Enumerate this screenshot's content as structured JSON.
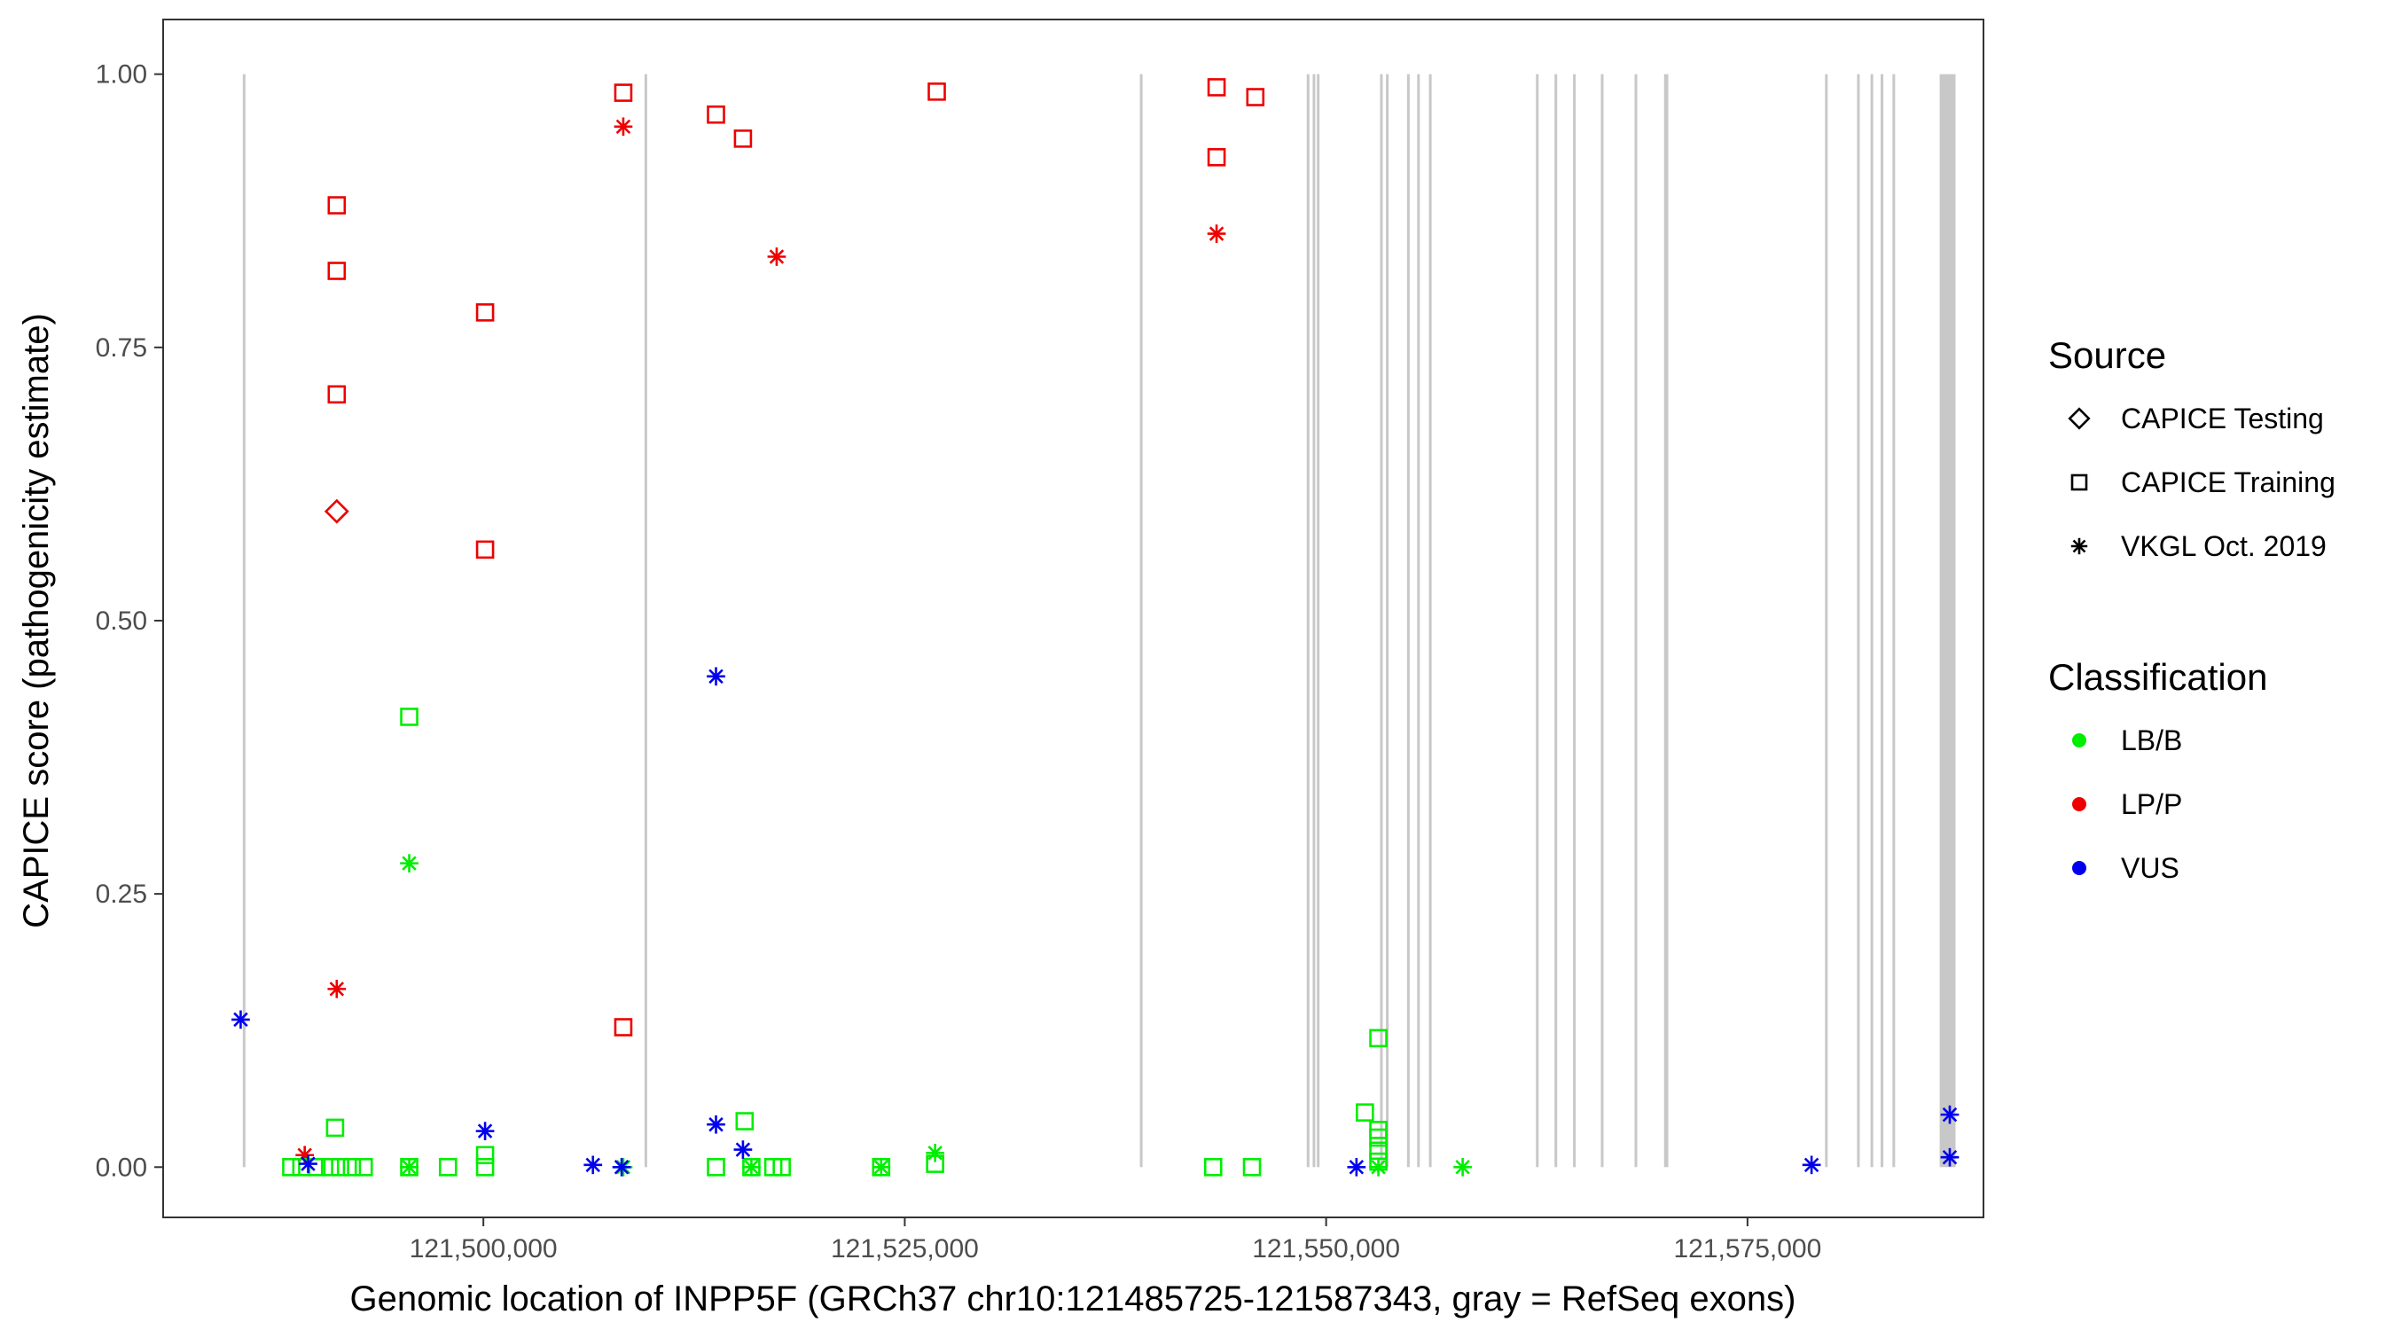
{
  "chart_data": {
    "type": "scatter",
    "title": "",
    "xlabel": "Genomic location of INPP5F (GRCh37 chr10:121485725-121587343, gray = RefSeq exons)",
    "ylabel": "CAPICE score (pathogenicity estimate)",
    "xlim": [
      121481000,
      121589000
    ],
    "ylim": [
      -0.046,
      1.05
    ],
    "x_ticks": [
      121500000,
      121525000,
      121550000,
      121575000
    ],
    "x_tick_labels": [
      "121,500,000",
      "121,525,000",
      "121,550,000",
      "121,575,000"
    ],
    "y_ticks": [
      0,
      0.25,
      0.5,
      0.75,
      1.0
    ],
    "y_tick_labels": [
      "0.00",
      "0.25",
      "0.50",
      "0.75",
      "1.00"
    ],
    "grid": false,
    "exons": [
      [
        121485725,
        121485800
      ],
      [
        121509560,
        121509640
      ],
      [
        121538950,
        121539040
      ],
      [
        121548850,
        121548930
      ],
      [
        121549200,
        121549270
      ],
      [
        121549450,
        121549520
      ],
      [
        121553200,
        121553300
      ],
      [
        121553550,
        121553620
      ],
      [
        121554800,
        121554880
      ],
      [
        121555400,
        121555470
      ],
      [
        121556100,
        121556180
      ],
      [
        121562450,
        121562520
      ],
      [
        121563550,
        121563620
      ],
      [
        121564650,
        121564730
      ],
      [
        121566300,
        121566380
      ],
      [
        121568300,
        121568380
      ],
      [
        121570050,
        121570300
      ],
      [
        121579600,
        121579680
      ],
      [
        121581500,
        121581580
      ],
      [
        121582300,
        121582380
      ],
      [
        121582900,
        121582980
      ],
      [
        121583600,
        121583680
      ],
      [
        121586400,
        121587343
      ]
    ],
    "colors": {
      "LB/B": "#00ee00",
      "LP/P": "#ee0000",
      "VUS": "#0000ee"
    },
    "legend": {
      "position": "right",
      "source_title": "Source",
      "source_items": [
        {
          "label": "CAPICE Testing",
          "shape": "diamond"
        },
        {
          "label": "CAPICE Training",
          "shape": "square"
        },
        {
          "label": "VKGL Oct. 2019",
          "shape": "asterisk"
        }
      ],
      "class_title": "Classification",
      "class_items": [
        {
          "label": "LB/B",
          "color": "#00ee00"
        },
        {
          "label": "LP/P",
          "color": "#ee0000"
        },
        {
          "label": "VUS",
          "color": "#0000ee"
        }
      ]
    },
    "points": [
      {
        "x": 121491300,
        "y": 0.88,
        "source": "CAPICE Training",
        "class": "LP/P"
      },
      {
        "x": 121491300,
        "y": 0.82,
        "source": "CAPICE Training",
        "class": "LP/P"
      },
      {
        "x": 121491300,
        "y": 0.707,
        "source": "CAPICE Training",
        "class": "LP/P"
      },
      {
        "x": 121491300,
        "y": 0.6,
        "source": "CAPICE Testing",
        "class": "LP/P"
      },
      {
        "x": 121491300,
        "y": 0.163,
        "source": "VKGL Oct. 2019",
        "class": "LP/P"
      },
      {
        "x": 121489400,
        "y": 0.011,
        "source": "VKGL Oct. 2019",
        "class": "LP/P"
      },
      {
        "x": 121500100,
        "y": 0.782,
        "source": "CAPICE Training",
        "class": "LP/P"
      },
      {
        "x": 121500100,
        "y": 0.565,
        "source": "CAPICE Training",
        "class": "LP/P"
      },
      {
        "x": 121508300,
        "y": 0.983,
        "source": "CAPICE Training",
        "class": "LP/P"
      },
      {
        "x": 121508300,
        "y": 0.952,
        "source": "VKGL Oct. 2019",
        "class": "LP/P"
      },
      {
        "x": 121508300,
        "y": 0.128,
        "source": "CAPICE Training",
        "class": "LP/P"
      },
      {
        "x": 121513800,
        "y": 0.963,
        "source": "CAPICE Training",
        "class": "LP/P"
      },
      {
        "x": 121515400,
        "y": 0.941,
        "source": "CAPICE Training",
        "class": "LP/P"
      },
      {
        "x": 121517400,
        "y": 0.833,
        "source": "VKGL Oct. 2019",
        "class": "LP/P"
      },
      {
        "x": 121526900,
        "y": 0.984,
        "source": "CAPICE Training",
        "class": "LP/P"
      },
      {
        "x": 121543500,
        "y": 0.988,
        "source": "CAPICE Training",
        "class": "LP/P"
      },
      {
        "x": 121543500,
        "y": 0.924,
        "source": "CAPICE Training",
        "class": "LP/P"
      },
      {
        "x": 121543500,
        "y": 0.854,
        "source": "VKGL Oct. 2019",
        "class": "LP/P"
      },
      {
        "x": 121545800,
        "y": 0.979,
        "source": "CAPICE Training",
        "class": "LP/P"
      },
      {
        "x": 121495600,
        "y": 0.412,
        "source": "CAPICE Training",
        "class": "LB/B"
      },
      {
        "x": 121495600,
        "y": 0.278,
        "source": "VKGL Oct. 2019",
        "class": "LB/B"
      },
      {
        "x": 121491200,
        "y": 0.036,
        "source": "CAPICE Training",
        "class": "LB/B"
      },
      {
        "x": 121488600,
        "y": 0.0,
        "source": "CAPICE Training",
        "class": "LB/B"
      },
      {
        "x": 121489200,
        "y": 0.0,
        "source": "CAPICE Training",
        "class": "LB/B"
      },
      {
        "x": 121490100,
        "y": 0.0,
        "source": "CAPICE Training",
        "class": "LB/B"
      },
      {
        "x": 121490900,
        "y": 0.0,
        "source": "CAPICE Training",
        "class": "LB/B"
      },
      {
        "x": 121491500,
        "y": 0.0,
        "source": "CAPICE Training",
        "class": "LB/B"
      },
      {
        "x": 121492200,
        "y": 0.0,
        "source": "CAPICE Training",
        "class": "LB/B"
      },
      {
        "x": 121492900,
        "y": 0.0,
        "source": "CAPICE Training",
        "class": "LB/B"
      },
      {
        "x": 121495600,
        "y": 0.0,
        "source": "CAPICE Training",
        "class": "LB/B"
      },
      {
        "x": 121495600,
        "y": 0.0,
        "source": "VKGL Oct. 2019",
        "class": "LB/B"
      },
      {
        "x": 121497900,
        "y": 0.0,
        "source": "CAPICE Training",
        "class": "LB/B"
      },
      {
        "x": 121500100,
        "y": 0.011,
        "source": "CAPICE Training",
        "class": "LB/B"
      },
      {
        "x": 121500100,
        "y": 0.0,
        "source": "CAPICE Training",
        "class": "LB/B"
      },
      {
        "x": 121508300,
        "y": 0.0,
        "source": "VKGL Oct. 2019",
        "class": "LB/B"
      },
      {
        "x": 121513800,
        "y": 0.0,
        "source": "CAPICE Training",
        "class": "LB/B"
      },
      {
        "x": 121515500,
        "y": 0.042,
        "source": "CAPICE Training",
        "class": "LB/B"
      },
      {
        "x": 121515900,
        "y": 0.0,
        "source": "CAPICE Training",
        "class": "LB/B"
      },
      {
        "x": 121515900,
        "y": 0.0,
        "source": "VKGL Oct. 2019",
        "class": "LB/B"
      },
      {
        "x": 121517200,
        "y": 0.0,
        "source": "CAPICE Training",
        "class": "LB/B"
      },
      {
        "x": 121517700,
        "y": 0.0,
        "source": "CAPICE Training",
        "class": "LB/B"
      },
      {
        "x": 121523600,
        "y": 0.0,
        "source": "CAPICE Training",
        "class": "LB/B"
      },
      {
        "x": 121523600,
        "y": 0.0,
        "source": "VKGL Oct. 2019",
        "class": "LB/B"
      },
      {
        "x": 121526800,
        "y": 0.013,
        "source": "VKGL Oct. 2019",
        "class": "LB/B"
      },
      {
        "x": 121526800,
        "y": 0.003,
        "source": "CAPICE Training",
        "class": "LB/B"
      },
      {
        "x": 121543300,
        "y": 0.0,
        "source": "CAPICE Training",
        "class": "LB/B"
      },
      {
        "x": 121545600,
        "y": 0.0,
        "source": "CAPICE Training",
        "class": "LB/B"
      },
      {
        "x": 121552300,
        "y": 0.05,
        "source": "CAPICE Training",
        "class": "LB/B"
      },
      {
        "x": 121553100,
        "y": 0.118,
        "source": "CAPICE Training",
        "class": "LB/B"
      },
      {
        "x": 121553100,
        "y": 0.034,
        "source": "CAPICE Training",
        "class": "LB/B"
      },
      {
        "x": 121553100,
        "y": 0.027,
        "source": "CAPICE Training",
        "class": "LB/B"
      },
      {
        "x": 121553100,
        "y": 0.015,
        "source": "CAPICE Training",
        "class": "LB/B"
      },
      {
        "x": 121553100,
        "y": 0.005,
        "source": "CAPICE Training",
        "class": "LB/B"
      },
      {
        "x": 121553100,
        "y": 0.0,
        "source": "VKGL Oct. 2019",
        "class": "LB/B"
      },
      {
        "x": 121558100,
        "y": 0.0,
        "source": "VKGL Oct. 2019",
        "class": "LB/B"
      },
      {
        "x": 121485600,
        "y": 0.135,
        "source": "VKGL Oct. 2019",
        "class": "VUS"
      },
      {
        "x": 121489600,
        "y": 0.003,
        "source": "VKGL Oct. 2019",
        "class": "VUS"
      },
      {
        "x": 121500100,
        "y": 0.033,
        "source": "VKGL Oct. 2019",
        "class": "VUS"
      },
      {
        "x": 121506500,
        "y": 0.002,
        "source": "VKGL Oct. 2019",
        "class": "VUS"
      },
      {
        "x": 121508200,
        "y": 0.0,
        "source": "VKGL Oct. 2019",
        "class": "VUS"
      },
      {
        "x": 121513800,
        "y": 0.449,
        "source": "VKGL Oct. 2019",
        "class": "VUS"
      },
      {
        "x": 121513800,
        "y": 0.039,
        "source": "VKGL Oct. 2019",
        "class": "VUS"
      },
      {
        "x": 121515400,
        "y": 0.016,
        "source": "VKGL Oct. 2019",
        "class": "VUS"
      },
      {
        "x": 121551800,
        "y": 0.0,
        "source": "VKGL Oct. 2019",
        "class": "VUS"
      },
      {
        "x": 121578800,
        "y": 0.002,
        "source": "VKGL Oct. 2019",
        "class": "VUS"
      },
      {
        "x": 121587000,
        "y": 0.048,
        "source": "VKGL Oct. 2019",
        "class": "VUS"
      },
      {
        "x": 121587000,
        "y": 0.009,
        "source": "VKGL Oct. 2019",
        "class": "VUS"
      }
    ]
  }
}
